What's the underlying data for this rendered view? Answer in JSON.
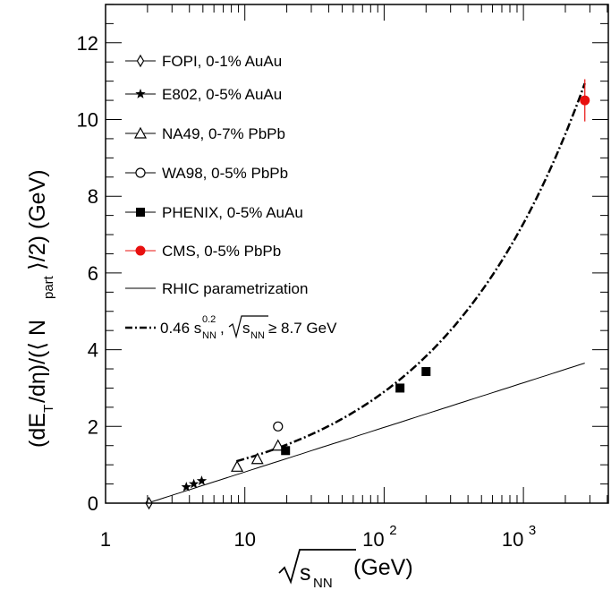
{
  "chart_data": {
    "type": "scatter",
    "x_scale": "log",
    "xlim": [
      1,
      5000
    ],
    "ylim": [
      0,
      13
    ],
    "grid": false,
    "legend_position": "top-left",
    "xlabel": {
      "prefix": "√",
      "var": "s",
      "sub": "NN",
      "suffix": " (GeV)"
    },
    "ylabel": {
      "p1": "(dE",
      "s1": "T",
      "p2": "/dη)/(⟨ N",
      "s2": "part",
      "p3": "⟩/2) (GeV)"
    },
    "x_ticks": [
      {
        "value": 1,
        "label": "1"
      },
      {
        "value": 10,
        "label": "10"
      },
      {
        "value": 100,
        "base": "10",
        "exp": "2"
      },
      {
        "value": 1000,
        "base": "10",
        "exp": "3"
      }
    ],
    "y_ticks": [
      0,
      2,
      4,
      6,
      8,
      10,
      12
    ],
    "series": [
      {
        "name": "FOPI, 0-1% AuAu",
        "marker": "diamond-open",
        "color": "#000000",
        "points": [
          {
            "x": 2.05,
            "y": 0.0
          }
        ]
      },
      {
        "name": "E802, 0-5% AuAu",
        "marker": "star",
        "color": "#000000",
        "points": [
          {
            "x": 3.8,
            "y": 0.42
          },
          {
            "x": 4.3,
            "y": 0.5
          },
          {
            "x": 4.9,
            "y": 0.58
          }
        ]
      },
      {
        "name": "NA49, 0-7% PbPb",
        "marker": "triangle-open",
        "color": "#000000",
        "points": [
          {
            "x": 8.8,
            "y": 0.95
          },
          {
            "x": 12.3,
            "y": 1.15
          },
          {
            "x": 17.3,
            "y": 1.5
          }
        ]
      },
      {
        "name": "WA98, 0-5% PbPb",
        "marker": "circle-open",
        "color": "#000000",
        "points": [
          {
            "x": 17.3,
            "y": 2.0
          }
        ]
      },
      {
        "name": "PHENIX, 0-5% AuAu",
        "marker": "square-filled",
        "color": "#000000",
        "points": [
          {
            "x": 19.6,
            "y": 1.37
          },
          {
            "x": 130,
            "y": 3.0
          },
          {
            "x": 200,
            "y": 3.43
          }
        ]
      },
      {
        "name": "CMS, 0-5% PbPb",
        "marker": "circle-filled",
        "color": "#e8100f",
        "points": [
          {
            "x": 2760,
            "y": 10.5,
            "err": 0.55
          }
        ]
      }
    ],
    "curves": [
      {
        "name": "RHIC parametrization",
        "style": "solid",
        "color": "#000000"
      },
      {
        "name": "0.46 s_NN^0.2, √s_NN ≥ 8.7 GeV",
        "style": "dash-dot",
        "color": "#000000"
      }
    ]
  },
  "legend_extra": {
    "fit_coef": "0.46 s",
    "fit_exp": "0.2",
    "fit_sub": "NN",
    "fit_sep": ",",
    "fit_sqrt": "√",
    "fit_s": "s",
    "fit_s_sub": "NN",
    "fit_cond": " ≥ 8.7 GeV"
  }
}
